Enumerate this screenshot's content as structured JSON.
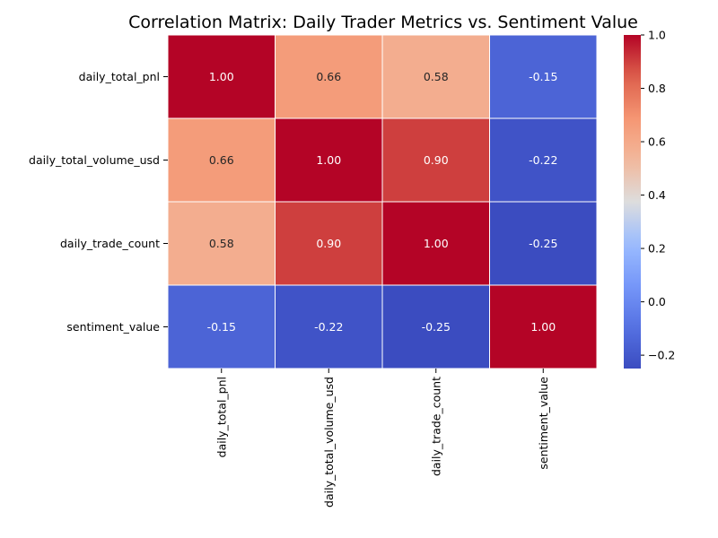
{
  "chart_data": {
    "type": "heatmap",
    "title": "Correlation Matrix: Daily Trader Metrics vs. Sentiment Value",
    "row_labels": [
      "daily_total_pnl",
      "daily_total_volume_usd",
      "daily_trade_count",
      "sentiment_value"
    ],
    "col_labels": [
      "daily_total_pnl",
      "daily_total_volume_usd",
      "daily_trade_count",
      "sentiment_value"
    ],
    "values": [
      [
        1.0,
        0.66,
        0.58,
        -0.15
      ],
      [
        0.66,
        1.0,
        0.9,
        -0.22
      ],
      [
        0.58,
        0.9,
        1.0,
        -0.25
      ],
      [
        -0.15,
        -0.22,
        -0.25,
        1.0
      ]
    ],
    "value_labels": [
      [
        "1.00",
        "0.66",
        "0.58",
        "-0.15"
      ],
      [
        "0.66",
        "1.00",
        "0.90",
        "-0.22"
      ],
      [
        "0.58",
        "0.90",
        "1.00",
        "-0.25"
      ],
      [
        "-0.15",
        "-0.22",
        "-0.25",
        "1.00"
      ]
    ],
    "colormap": "coolwarm",
    "colorbar": {
      "min": -0.25,
      "max": 1.0,
      "ticks": [
        -0.2,
        0.0,
        0.2,
        0.4,
        0.6,
        0.8,
        1.0
      ],
      "tick_labels": [
        "−0.2",
        "0.0",
        "0.2",
        "0.4",
        "0.6",
        "0.8",
        "1.0"
      ],
      "placement": "right"
    },
    "colors": {
      "low": "#3b4cc0",
      "mid": "#dddddd",
      "high": "#b40426",
      "cell_border": "#ffffff"
    }
  }
}
